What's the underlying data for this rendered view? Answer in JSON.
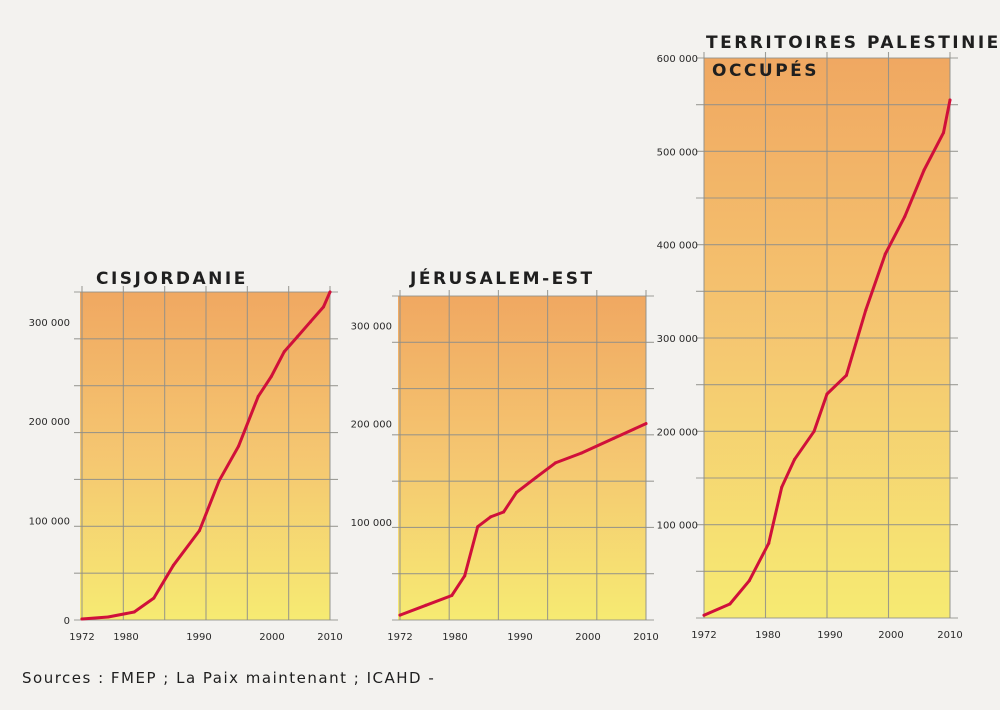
{
  "colors": {
    "line": "#d0103a",
    "grid": "#8f8f8a",
    "fill_top": "#f0a45a",
    "fill_mid": "#f5c46a",
    "fill_bottom": "#f6ea6c",
    "paper": "#f3f2ef"
  },
  "source": "Sources : FMEP ; La Paix maintenant ; ICAHD -",
  "chart_data": [
    {
      "type": "line",
      "title": "CISJORDANIE",
      "xlabel": "",
      "ylabel": "",
      "x_ticks": [
        "1972",
        "1980",
        "1990",
        "2000",
        "2010"
      ],
      "y_ticks": [
        "0",
        "100 000",
        "200 000",
        "300 000"
      ],
      "xlim": [
        1972,
        2010
      ],
      "ylim": [
        0,
        330000
      ],
      "grid": true,
      "series": [
        {
          "x": [
            1972,
            1976,
            1980,
            1983,
            1986,
            1990,
            1993,
            1996,
            1999,
            2001,
            2003,
            2005,
            2007,
            2009,
            2010
          ],
          "y": [
            1000,
            3000,
            8000,
            22000,
            55000,
            90000,
            140000,
            175000,
            225000,
            245000,
            270000,
            285000,
            300000,
            315000,
            330000
          ]
        }
      ]
    },
    {
      "type": "line",
      "title": "JÉRUSALEM-EST",
      "xlabel": "",
      "ylabel": "",
      "x_ticks": [
        "1972",
        "1980",
        "1990",
        "2000",
        "2010"
      ],
      "y_ticks": [
        "100 000",
        "200 000",
        "300 000"
      ],
      "xlim": [
        1972,
        2010
      ],
      "ylim": [
        0,
        330000
      ],
      "grid": true,
      "series": [
        {
          "x": [
            1972,
            1976,
            1980,
            1982,
            1984,
            1986,
            1988,
            1990,
            1993,
            1996,
            2000,
            2005,
            2010
          ],
          "y": [
            5000,
            15000,
            25000,
            45000,
            95000,
            105000,
            110000,
            130000,
            145000,
            160000,
            170000,
            185000,
            200000
          ]
        }
      ]
    },
    {
      "type": "line",
      "title": "TERRITOIRES PALESTINIENS OCCUPÉS",
      "xlabel": "",
      "ylabel": "",
      "x_ticks": [
        "1972",
        "1980",
        "1990",
        "2000",
        "2010"
      ],
      "y_ticks": [
        "100 000",
        "200 000",
        "300 000",
        "400 000",
        "500 000",
        "600 000"
      ],
      "xlim": [
        1972,
        2010
      ],
      "ylim": [
        0,
        600000
      ],
      "grid": true,
      "series": [
        {
          "x": [
            1972,
            1976,
            1979,
            1982,
            1984,
            1986,
            1989,
            1991,
            1994,
            1997,
            2000,
            2003,
            2006,
            2009,
            2010
          ],
          "y": [
            3000,
            15000,
            40000,
            80000,
            140000,
            170000,
            200000,
            240000,
            260000,
            330000,
            390000,
            430000,
            480000,
            520000,
            555000
          ]
        }
      ]
    }
  ]
}
